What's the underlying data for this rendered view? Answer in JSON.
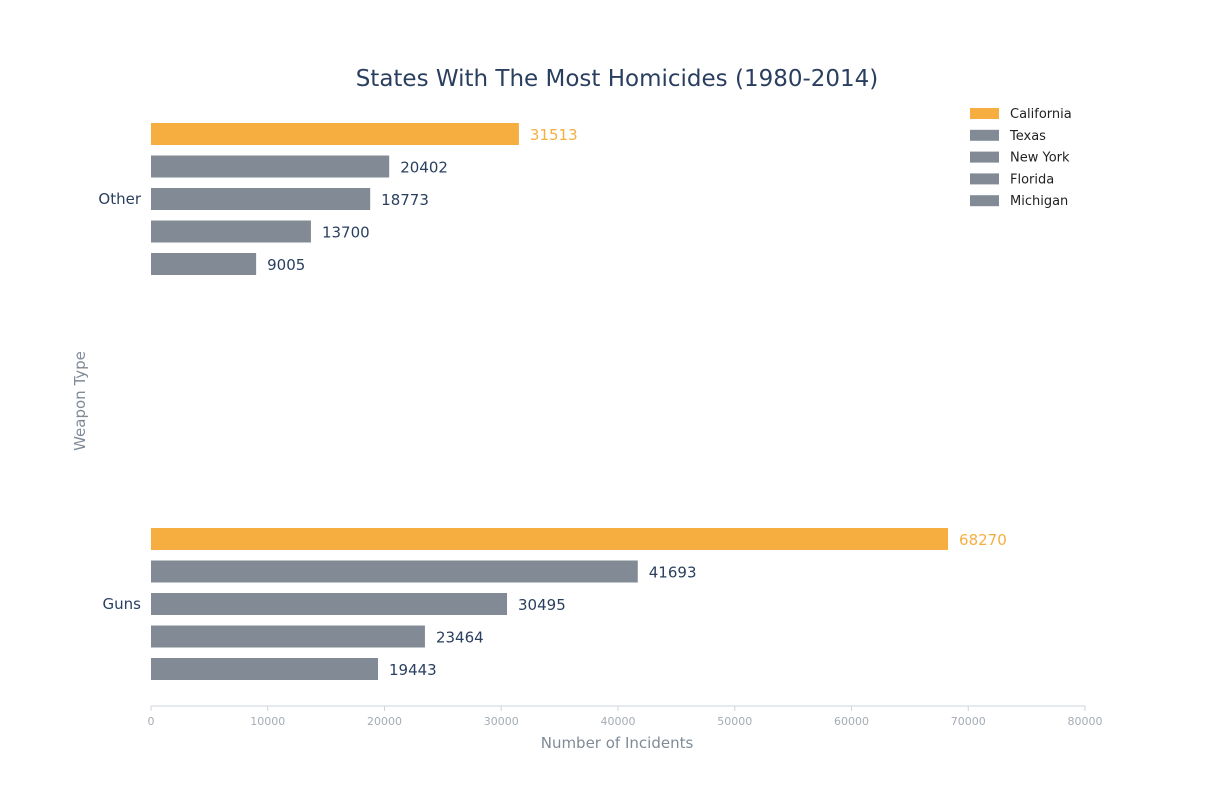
{
  "chart_data": {
    "type": "bar",
    "orientation": "horizontal",
    "title": "States With The Most Homicides (1980-2014)",
    "xlabel": "Number of Incidents",
    "ylabel": "Weapon Type",
    "xlim": [
      0,
      80000
    ],
    "xticks": [
      "0",
      "10000",
      "20000",
      "30000",
      "40000",
      "50000",
      "60000",
      "70000",
      "80000"
    ],
    "categories": [
      "Other",
      "Guns"
    ],
    "series": [
      {
        "name": "California",
        "color": "#f7ae41",
        "values": [
          31513,
          68270
        ],
        "labels": [
          "31513",
          "68270"
        ]
      },
      {
        "name": "Texas",
        "color": "#828b95",
        "values": [
          20402,
          41693
        ],
        "labels": [
          "20402",
          "41693"
        ]
      },
      {
        "name": "New York",
        "color": "#828b95",
        "values": [
          18773,
          30495
        ],
        "labels": [
          "18773",
          "30495"
        ]
      },
      {
        "name": "Florida",
        "color": "#828b95",
        "values": [
          13700,
          23464
        ],
        "labels": [
          "13700",
          "23464"
        ]
      },
      {
        "name": "Michigan",
        "color": "#828b95",
        "values": [
          9005,
          19443
        ],
        "labels": [
          "9005",
          "19443"
        ]
      }
    ],
    "label_colors": {
      "highlight": "#f7ae41",
      "default": "#2a3f5f"
    },
    "grid": false,
    "legend_position": "top-right"
  }
}
